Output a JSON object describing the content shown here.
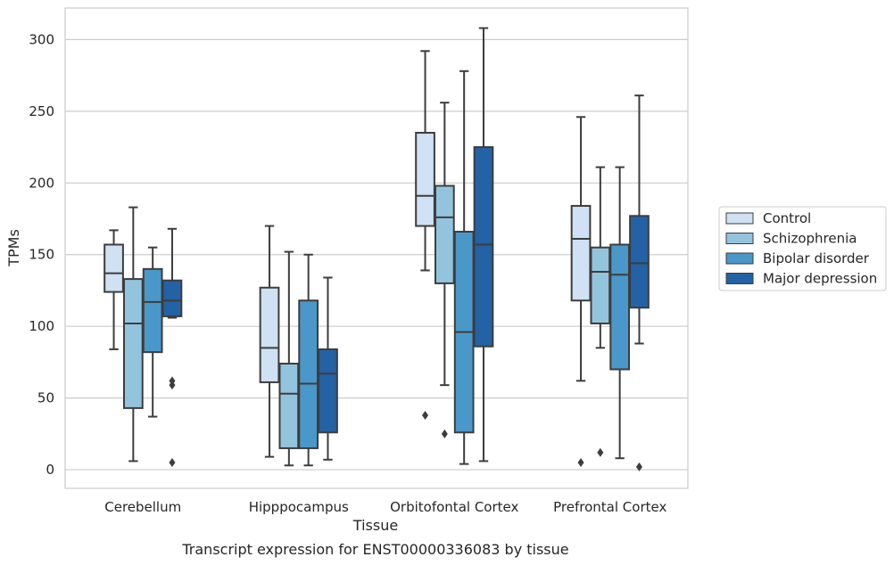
{
  "caption": "Transcript expression for ENST00000336083 by tissue",
  "chart_data": {
    "type": "boxplot",
    "xlabel": "Tissue",
    "ylabel": "TPMs",
    "ylim": [
      -13,
      322
    ],
    "yticks": [
      0,
      50,
      100,
      150,
      200,
      250,
      300
    ],
    "grid": "horizontal",
    "legend_position": "right",
    "categories": [
      "Cerebellum",
      "Hipppocampus",
      "Orbitofontal Cortex",
      "Prefrontal Cortex"
    ],
    "series": [
      {
        "name": "Control",
        "color": "#cfe1f2",
        "boxes": [
          {
            "whislo": 84,
            "q1": 124,
            "med": 137,
            "q3": 157,
            "whishi": 167,
            "fliers": []
          },
          {
            "whislo": 9,
            "q1": 61,
            "med": 85,
            "q3": 127,
            "whishi": 170,
            "fliers": []
          },
          {
            "whislo": 139,
            "q1": 170,
            "med": 191,
            "q3": 235,
            "whishi": 292,
            "fliers": [
              38
            ]
          },
          {
            "whislo": 62,
            "q1": 118,
            "med": 161,
            "q3": 184,
            "whishi": 246,
            "fliers": [
              5
            ]
          }
        ]
      },
      {
        "name": "Schizophrenia",
        "color": "#93c4de",
        "boxes": [
          {
            "whislo": 6,
            "q1": 43,
            "med": 102,
            "q3": 133,
            "whishi": 183,
            "fliers": []
          },
          {
            "whislo": 3,
            "q1": 15,
            "med": 53,
            "q3": 74,
            "whishi": 152,
            "fliers": []
          },
          {
            "whislo": 59,
            "q1": 130,
            "med": 176,
            "q3": 198,
            "whishi": 256,
            "fliers": [
              25
            ]
          },
          {
            "whislo": 85,
            "q1": 102,
            "med": 138,
            "q3": 155,
            "whishi": 211,
            "fliers": [
              12
            ]
          }
        ]
      },
      {
        "name": "Bipolar disorder",
        "color": "#4a98c9",
        "boxes": [
          {
            "whislo": 37,
            "q1": 82,
            "med": 117,
            "q3": 140,
            "whishi": 155,
            "fliers": []
          },
          {
            "whislo": 3,
            "q1": 15,
            "med": 60,
            "q3": 118,
            "whishi": 150,
            "fliers": []
          },
          {
            "whislo": 4,
            "q1": 26,
            "med": 96,
            "q3": 166,
            "whishi": 278,
            "fliers": []
          },
          {
            "whislo": 8,
            "q1": 70,
            "med": 136,
            "q3": 157,
            "whishi": 211,
            "fliers": []
          }
        ]
      },
      {
        "name": "Major depression",
        "color": "#2362a5",
        "boxes": [
          {
            "whislo": 106,
            "q1": 107,
            "med": 118,
            "q3": 132,
            "whishi": 168,
            "fliers": [
              62,
              59,
              5
            ]
          },
          {
            "whislo": 7,
            "q1": 26,
            "med": 67,
            "q3": 84,
            "whishi": 134,
            "fliers": []
          },
          {
            "whislo": 6,
            "q1": 86,
            "med": 157,
            "q3": 225,
            "whishi": 308,
            "fliers": []
          },
          {
            "whislo": 88,
            "q1": 113,
            "med": 144,
            "q3": 177,
            "whishi": 261,
            "fliers": [
              2
            ]
          }
        ]
      }
    ]
  }
}
